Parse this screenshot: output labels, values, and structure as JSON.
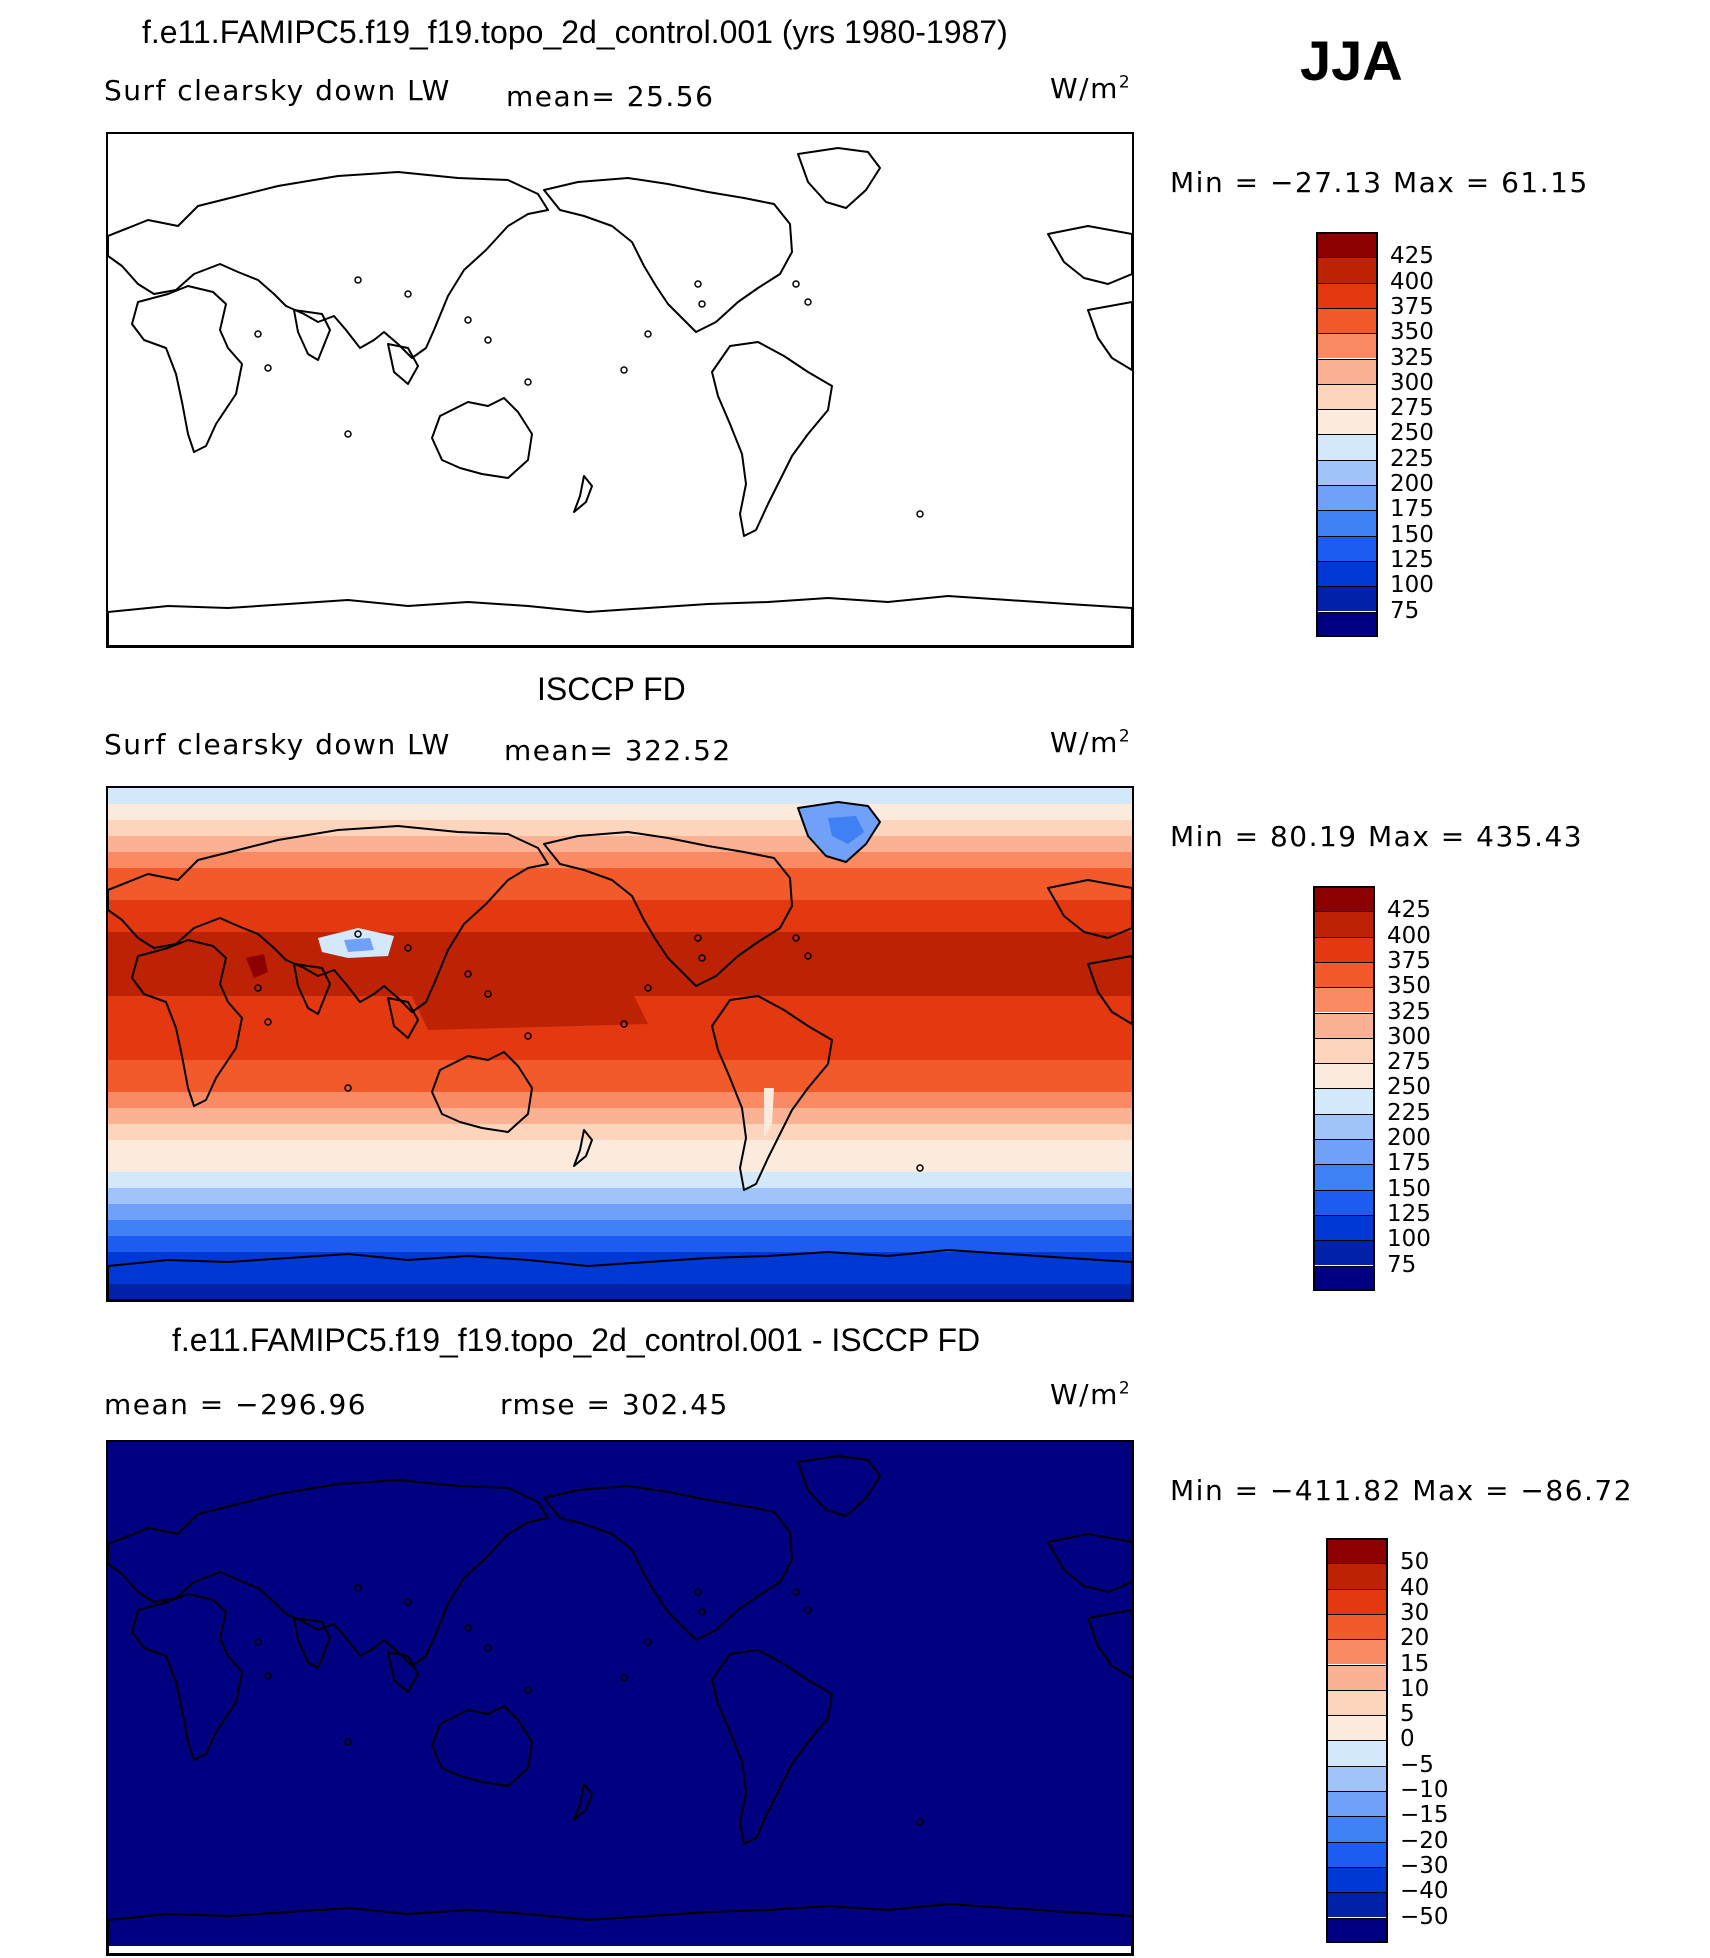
{
  "season": "JJA",
  "colors": {
    "main_scale": [
      "#000080",
      "#0021a8",
      "#0038d6",
      "#1c5cf0",
      "#4080f5",
      "#70a0f7",
      "#a0c3f9",
      "#d3e8fb",
      "#fcebdc",
      "#fcd5bc",
      "#fbb294",
      "#f98a64",
      "#f25a2c",
      "#e33810",
      "#be2204",
      "#8c0000"
    ],
    "diff_scale": [
      "#000080",
      "#0021a8",
      "#0038d6",
      "#1c5cf0",
      "#4080f5",
      "#70a0f7",
      "#a0c3f9",
      "#d3e8fb",
      "#fcebdc",
      "#fcd5bc",
      "#fbb294",
      "#f98a64",
      "#f25a2c",
      "#e33810",
      "#be2204",
      "#8c0000"
    ],
    "land_outline": "#000000",
    "diff_fill": "#000080"
  },
  "chart_data": [
    {
      "type": "heatmap",
      "title": "f.e11.FAMIPC5.f19_f19.topo_2d_control.001 (yrs 1980-1987)",
      "left_label": "Surf clearsky down LW",
      "mean_label": "mean=  25.56",
      "mean": 25.56,
      "units_base": "W/m",
      "units_exp": "2",
      "minmax_label": "Min = −27.13 Max =  61.15",
      "min": -27.13,
      "max": 61.15,
      "colorbar_levels": [
        "425",
        "400",
        "375",
        "350",
        "325",
        "300",
        "275",
        "250",
        "225",
        "200",
        "175",
        "150",
        "125",
        "100",
        "75"
      ],
      "fill": "none"
    },
    {
      "type": "heatmap",
      "title": "ISCCP FD",
      "left_label": "Surf clearsky down LW",
      "mean_label": "mean= 322.52",
      "mean": 322.52,
      "units_base": "W/m",
      "units_exp": "2",
      "minmax_label": "Min =  80.19 Max = 435.43",
      "min": 80.19,
      "max": 435.43,
      "colorbar_levels": [
        "425",
        "400",
        "375",
        "350",
        "325",
        "300",
        "275",
        "250",
        "225",
        "200",
        "175",
        "150",
        "125",
        "100",
        "75"
      ],
      "fill": "field"
    },
    {
      "type": "heatmap",
      "title": "f.e11.FAMIPC5.f19_f19.topo_2d_control.001 - ISCCP FD",
      "left_label": "mean = −296.96",
      "mean": -296.96,
      "rmse_label": "rmse = 302.45",
      "rmse": 302.45,
      "units_base": "W/m",
      "units_exp": "2",
      "minmax_label": "Min = −411.82 Max = −86.72",
      "min": -411.82,
      "max": -86.72,
      "colorbar_levels": [
        "50",
        "40",
        "30",
        "20",
        "15",
        "10",
        "5",
        "0",
        "−5",
        "−10",
        "−15",
        "−20",
        "−30",
        "−40",
        "−50"
      ],
      "fill": "solid"
    }
  ]
}
